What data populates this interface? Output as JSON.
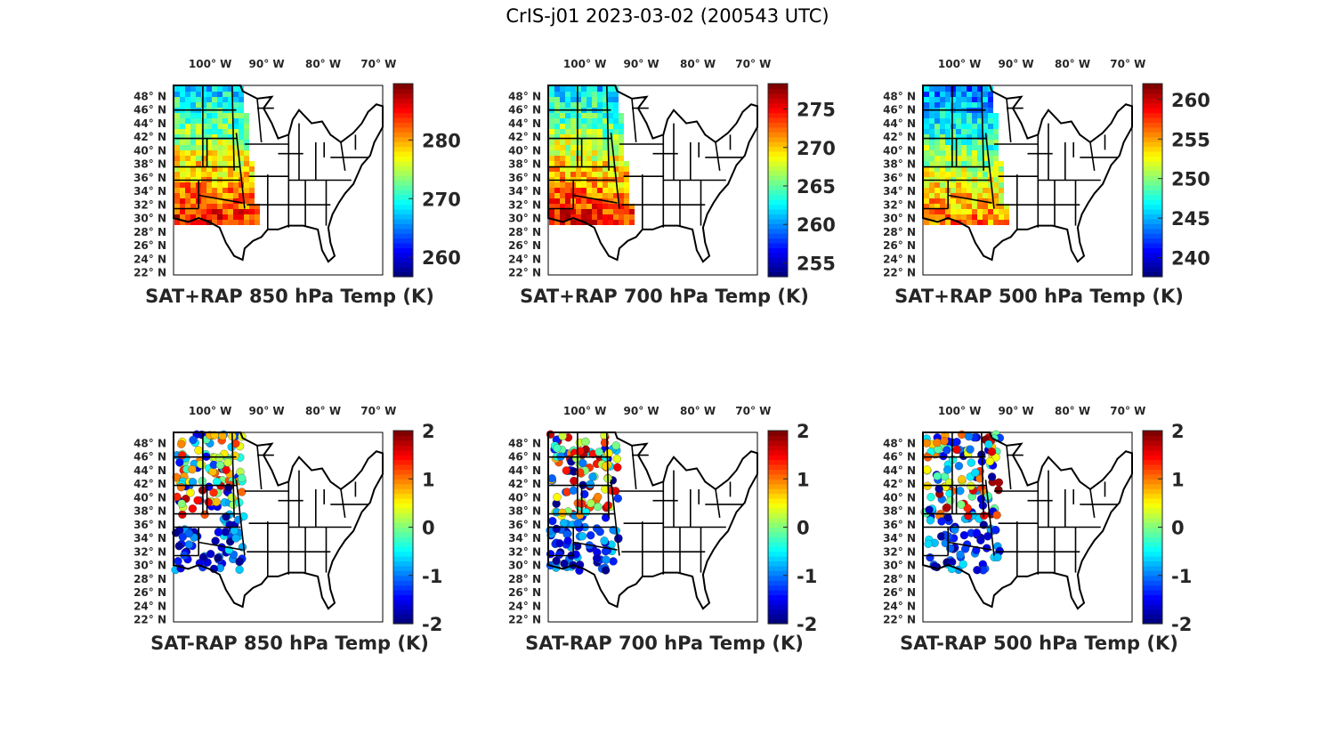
{
  "figure": {
    "title": "CrIS-j01 2023-03-02 (200543 UTC)",
    "colormap": "jet",
    "lon_labels": [
      {
        "deg": "100",
        "hemi": "W"
      },
      {
        "deg": "90",
        "hemi": "W"
      },
      {
        "deg": "80",
        "hemi": "W"
      },
      {
        "deg": "70",
        "hemi": "W"
      }
    ],
    "lat_labels": [
      {
        "deg": "48",
        "hemi": "N"
      },
      {
        "deg": "46",
        "hemi": "N"
      },
      {
        "deg": "44",
        "hemi": "N"
      },
      {
        "deg": "42",
        "hemi": "N"
      },
      {
        "deg": "40",
        "hemi": "N"
      },
      {
        "deg": "38",
        "hemi": "N"
      },
      {
        "deg": "36",
        "hemi": "N"
      },
      {
        "deg": "34",
        "hemi": "N"
      },
      {
        "deg": "32",
        "hemi": "N"
      },
      {
        "deg": "30",
        "hemi": "N"
      },
      {
        "deg": "28",
        "hemi": "N"
      },
      {
        "deg": "26",
        "hemi": "N"
      },
      {
        "deg": "24",
        "hemi": "N"
      },
      {
        "deg": "22",
        "hemi": "N"
      }
    ],
    "panels": [
      {
        "id": "sat-rap-850",
        "title": "SAT+RAP 850 hPa Temp (K)",
        "kind": "field",
        "cbar_min": 256.7,
        "cbar_max": 289.6,
        "cbar_ticks": [
          "260",
          "270",
          "280"
        ]
      },
      {
        "id": "sat-rap-700",
        "title": "SAT+RAP 700 hPa Temp (K)",
        "kind": "field",
        "cbar_min": 253.2,
        "cbar_max": 278.3,
        "cbar_ticks": [
          "255",
          "260",
          "265",
          "270",
          "275"
        ]
      },
      {
        "id": "sat-rap-500",
        "title": "SAT+RAP 500 hPa Temp (K)",
        "kind": "field",
        "cbar_min": 237.6,
        "cbar_max": 262.0,
        "cbar_ticks": [
          "240",
          "245",
          "250",
          "255",
          "260"
        ]
      },
      {
        "id": "sat-minus-rap-850",
        "title": "SAT-RAP 850 hPa Temp (K)",
        "kind": "diff",
        "cbar_min": -2,
        "cbar_max": 2,
        "cbar_ticks": [
          "-2",
          "-1",
          "0",
          "1",
          "2"
        ]
      },
      {
        "id": "sat-minus-rap-700",
        "title": "SAT-RAP 700 hPa Temp (K)",
        "kind": "diff",
        "cbar_min": -2,
        "cbar_max": 2,
        "cbar_ticks": [
          "-2",
          "-1",
          "0",
          "1",
          "2"
        ]
      },
      {
        "id": "sat-minus-rap-500",
        "title": "SAT-RAP 500 hPa Temp (K)",
        "kind": "diff",
        "cbar_min": -2,
        "cbar_max": 2,
        "cbar_ticks": [
          "-2",
          "-1",
          "0",
          "1",
          "2"
        ]
      }
    ]
  }
}
